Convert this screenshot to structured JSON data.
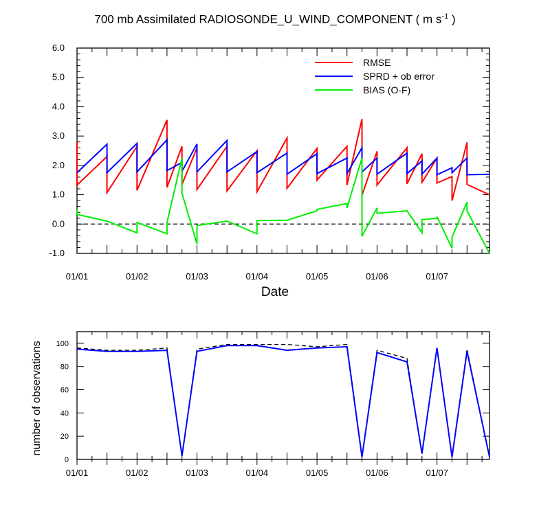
{
  "chart_data": [
    {
      "type": "line",
      "title": "700 mb Assimilated RADIOSONDE_U_WIND_COMPONENT ( m s",
      "title_sup": "-1",
      "title_end": " )",
      "xlabel": "Date",
      "ylabel": "",
      "xlim": [
        0,
        6.875
      ],
      "ylim": [
        -1.0,
        6.0
      ],
      "y_ticks": [
        -1.0,
        0.0,
        1.0,
        2.0,
        3.0,
        4.0,
        5.0,
        6.0
      ],
      "y_tick_labels": [
        "-1.0",
        "0.0",
        "1.0",
        "2.0",
        "3.0",
        "4.0",
        "5.0",
        "6.0"
      ],
      "x_ticks": [
        0,
        1,
        2,
        3,
        4,
        5,
        6
      ],
      "x_tick_labels": [
        "01/01",
        "01/02",
        "01/03",
        "01/04",
        "01/05",
        "01/06",
        "01/07"
      ],
      "zero_line": true,
      "legend": [
        "RMSE",
        "SPRD + ob error",
        "BIAS (O-F)"
      ],
      "legend_position": "top-right",
      "series": [
        {
          "name": "RMSE",
          "color": "#ff0000",
          "points": [
            [
              0,
              2.8
            ],
            [
              0,
              1.33
            ],
            [
              0.5,
              2.3
            ],
            [
              0.5,
              1.07
            ],
            [
              1,
              2.65
            ],
            [
              1,
              1.15
            ],
            [
              1.5,
              3.55
            ],
            [
              1.5,
              1.25
            ],
            [
              1.75,
              2.65
            ],
            [
              1.75,
              1.35
            ],
            [
              2,
              2.6
            ],
            [
              2,
              1.18
            ],
            [
              2.5,
              2.65
            ],
            [
              2.5,
              1.13
            ],
            [
              3,
              2.5
            ],
            [
              3,
              1.1
            ],
            [
              3.5,
              2.93
            ],
            [
              3.5,
              1.22
            ],
            [
              4,
              2.58
            ],
            [
              4,
              1.5
            ],
            [
              4.5,
              2.65
            ],
            [
              4.5,
              1.33
            ],
            [
              4.75,
              3.58
            ],
            [
              4.75,
              0.98
            ],
            [
              5,
              2.48
            ],
            [
              5,
              1.33
            ],
            [
              5.5,
              2.6
            ],
            [
              5.5,
              1.37
            ],
            [
              5.75,
              2.4
            ],
            [
              5.75,
              1.42
            ],
            [
              6,
              2.25
            ],
            [
              6,
              1.4
            ],
            [
              6.25,
              1.62
            ],
            [
              6.25,
              0.8
            ],
            [
              6.5,
              2.78
            ],
            [
              6.5,
              1.35
            ],
            [
              6.875,
              1.0
            ]
          ]
        },
        {
          "name": "SPRD + ob error",
          "color": "#0000ff",
          "points": [
            [
              0,
              1.75
            ],
            [
              0.5,
              2.72
            ],
            [
              0.5,
              1.75
            ],
            [
              1,
              2.75
            ],
            [
              1,
              1.78
            ],
            [
              1.5,
              2.87
            ],
            [
              1.5,
              1.82
            ],
            [
              1.75,
              2.1
            ],
            [
              1.75,
              1.8
            ],
            [
              2,
              2.73
            ],
            [
              2,
              1.78
            ],
            [
              2.5,
              2.85
            ],
            [
              2.5,
              1.78
            ],
            [
              3,
              2.47
            ],
            [
              3,
              1.75
            ],
            [
              3.5,
              2.42
            ],
            [
              3.5,
              1.7
            ],
            [
              4,
              2.4
            ],
            [
              4,
              1.72
            ],
            [
              4.5,
              2.25
            ],
            [
              4.5,
              1.72
            ],
            [
              4.75,
              2.6
            ],
            [
              4.75,
              1.78
            ],
            [
              5,
              2.25
            ],
            [
              5,
              1.7
            ],
            [
              5.5,
              2.42
            ],
            [
              5.5,
              1.72
            ],
            [
              5.75,
              2.15
            ],
            [
              5.75,
              1.7
            ],
            [
              6,
              2.25
            ],
            [
              6,
              1.68
            ],
            [
              6.25,
              1.92
            ],
            [
              6.25,
              1.75
            ],
            [
              6.5,
              2.25
            ],
            [
              6.5,
              1.68
            ],
            [
              6.875,
              1.7
            ]
          ]
        },
        {
          "name": "BIAS (O-F)",
          "color": "#00ee00",
          "points": [
            [
              0,
              0.5
            ],
            [
              0,
              0.33
            ],
            [
              0.5,
              0.1
            ],
            [
              1,
              -0.3
            ],
            [
              1,
              0.05
            ],
            [
              1.5,
              -0.33
            ],
            [
              1.5,
              0.05
            ],
            [
              1.75,
              2.25
            ],
            [
              1.75,
              1.05
            ],
            [
              2,
              -0.68
            ],
            [
              2,
              -0.05
            ],
            [
              2.5,
              0.1
            ],
            [
              3,
              -0.33
            ],
            [
              3,
              0.12
            ],
            [
              3.5,
              0.13
            ],
            [
              4,
              0.45
            ],
            [
              4,
              0.5
            ],
            [
              4.5,
              0.7
            ],
            [
              4.5,
              0.55
            ],
            [
              4.75,
              2.25
            ],
            [
              4.75,
              -0.42
            ],
            [
              5,
              0.55
            ],
            [
              5,
              0.37
            ],
            [
              5.5,
              0.45
            ],
            [
              5.75,
              -0.3
            ],
            [
              5.75,
              0.15
            ],
            [
              6,
              0.2
            ],
            [
              6,
              0.25
            ],
            [
              6.25,
              -0.82
            ],
            [
              6.25,
              -0.45
            ],
            [
              6.5,
              0.75
            ],
            [
              6.5,
              0.45
            ],
            [
              6.875,
              -1.0
            ]
          ]
        }
      ]
    },
    {
      "type": "line",
      "title": "",
      "xlabel": "",
      "ylabel": "number of observations",
      "xlim": [
        0,
        6.875
      ],
      "ylim": [
        0,
        110
      ],
      "y_ticks": [
        0,
        20,
        40,
        60,
        80,
        100
      ],
      "y_tick_labels": [
        "0",
        "20",
        "40",
        "60",
        "80",
        "100"
      ],
      "x_ticks": [
        0,
        1,
        2,
        3,
        4,
        5,
        6
      ],
      "x_tick_labels": [
        "01/01",
        "01/02",
        "01/03",
        "01/04",
        "01/05",
        "01/06",
        "01/07"
      ],
      "series": [
        {
          "name": "observations (dashed)",
          "color": "#000000",
          "dashed": true,
          "points": [
            [
              0,
              96
            ],
            [
              0.5,
              94
            ],
            [
              1,
              94
            ],
            [
              1.5,
              96
            ],
            [
              1.75,
              3
            ],
            [
              2,
              95
            ],
            [
              2.5,
              99
            ],
            [
              3,
              99
            ],
            [
              3.5,
              99
            ],
            [
              4,
              97
            ],
            [
              4.5,
              99
            ],
            [
              4.75,
              3
            ],
            [
              5,
              94
            ],
            [
              5.5,
              87
            ],
            [
              5.75,
              5
            ],
            [
              6,
              97
            ],
            [
              6.25,
              2
            ],
            [
              6.5,
              95
            ],
            [
              6.875,
              2
            ]
          ]
        },
        {
          "name": "observations (assimilated)",
          "color": "#0000ff",
          "points": [
            [
              0,
              95
            ],
            [
              0.5,
              93
            ],
            [
              1,
              93
            ],
            [
              1.5,
              94
            ],
            [
              1.75,
              3
            ],
            [
              2,
              93
            ],
            [
              2.5,
              98
            ],
            [
              3,
              98
            ],
            [
              3.5,
              94
            ],
            [
              4,
              96
            ],
            [
              4.5,
              97
            ],
            [
              4.75,
              2
            ],
            [
              5,
              92
            ],
            [
              5.5,
              84
            ],
            [
              5.75,
              5
            ],
            [
              6,
              96
            ],
            [
              6.25,
              2
            ],
            [
              6.5,
              93
            ],
            [
              6.875,
              2
            ]
          ]
        }
      ]
    }
  ]
}
